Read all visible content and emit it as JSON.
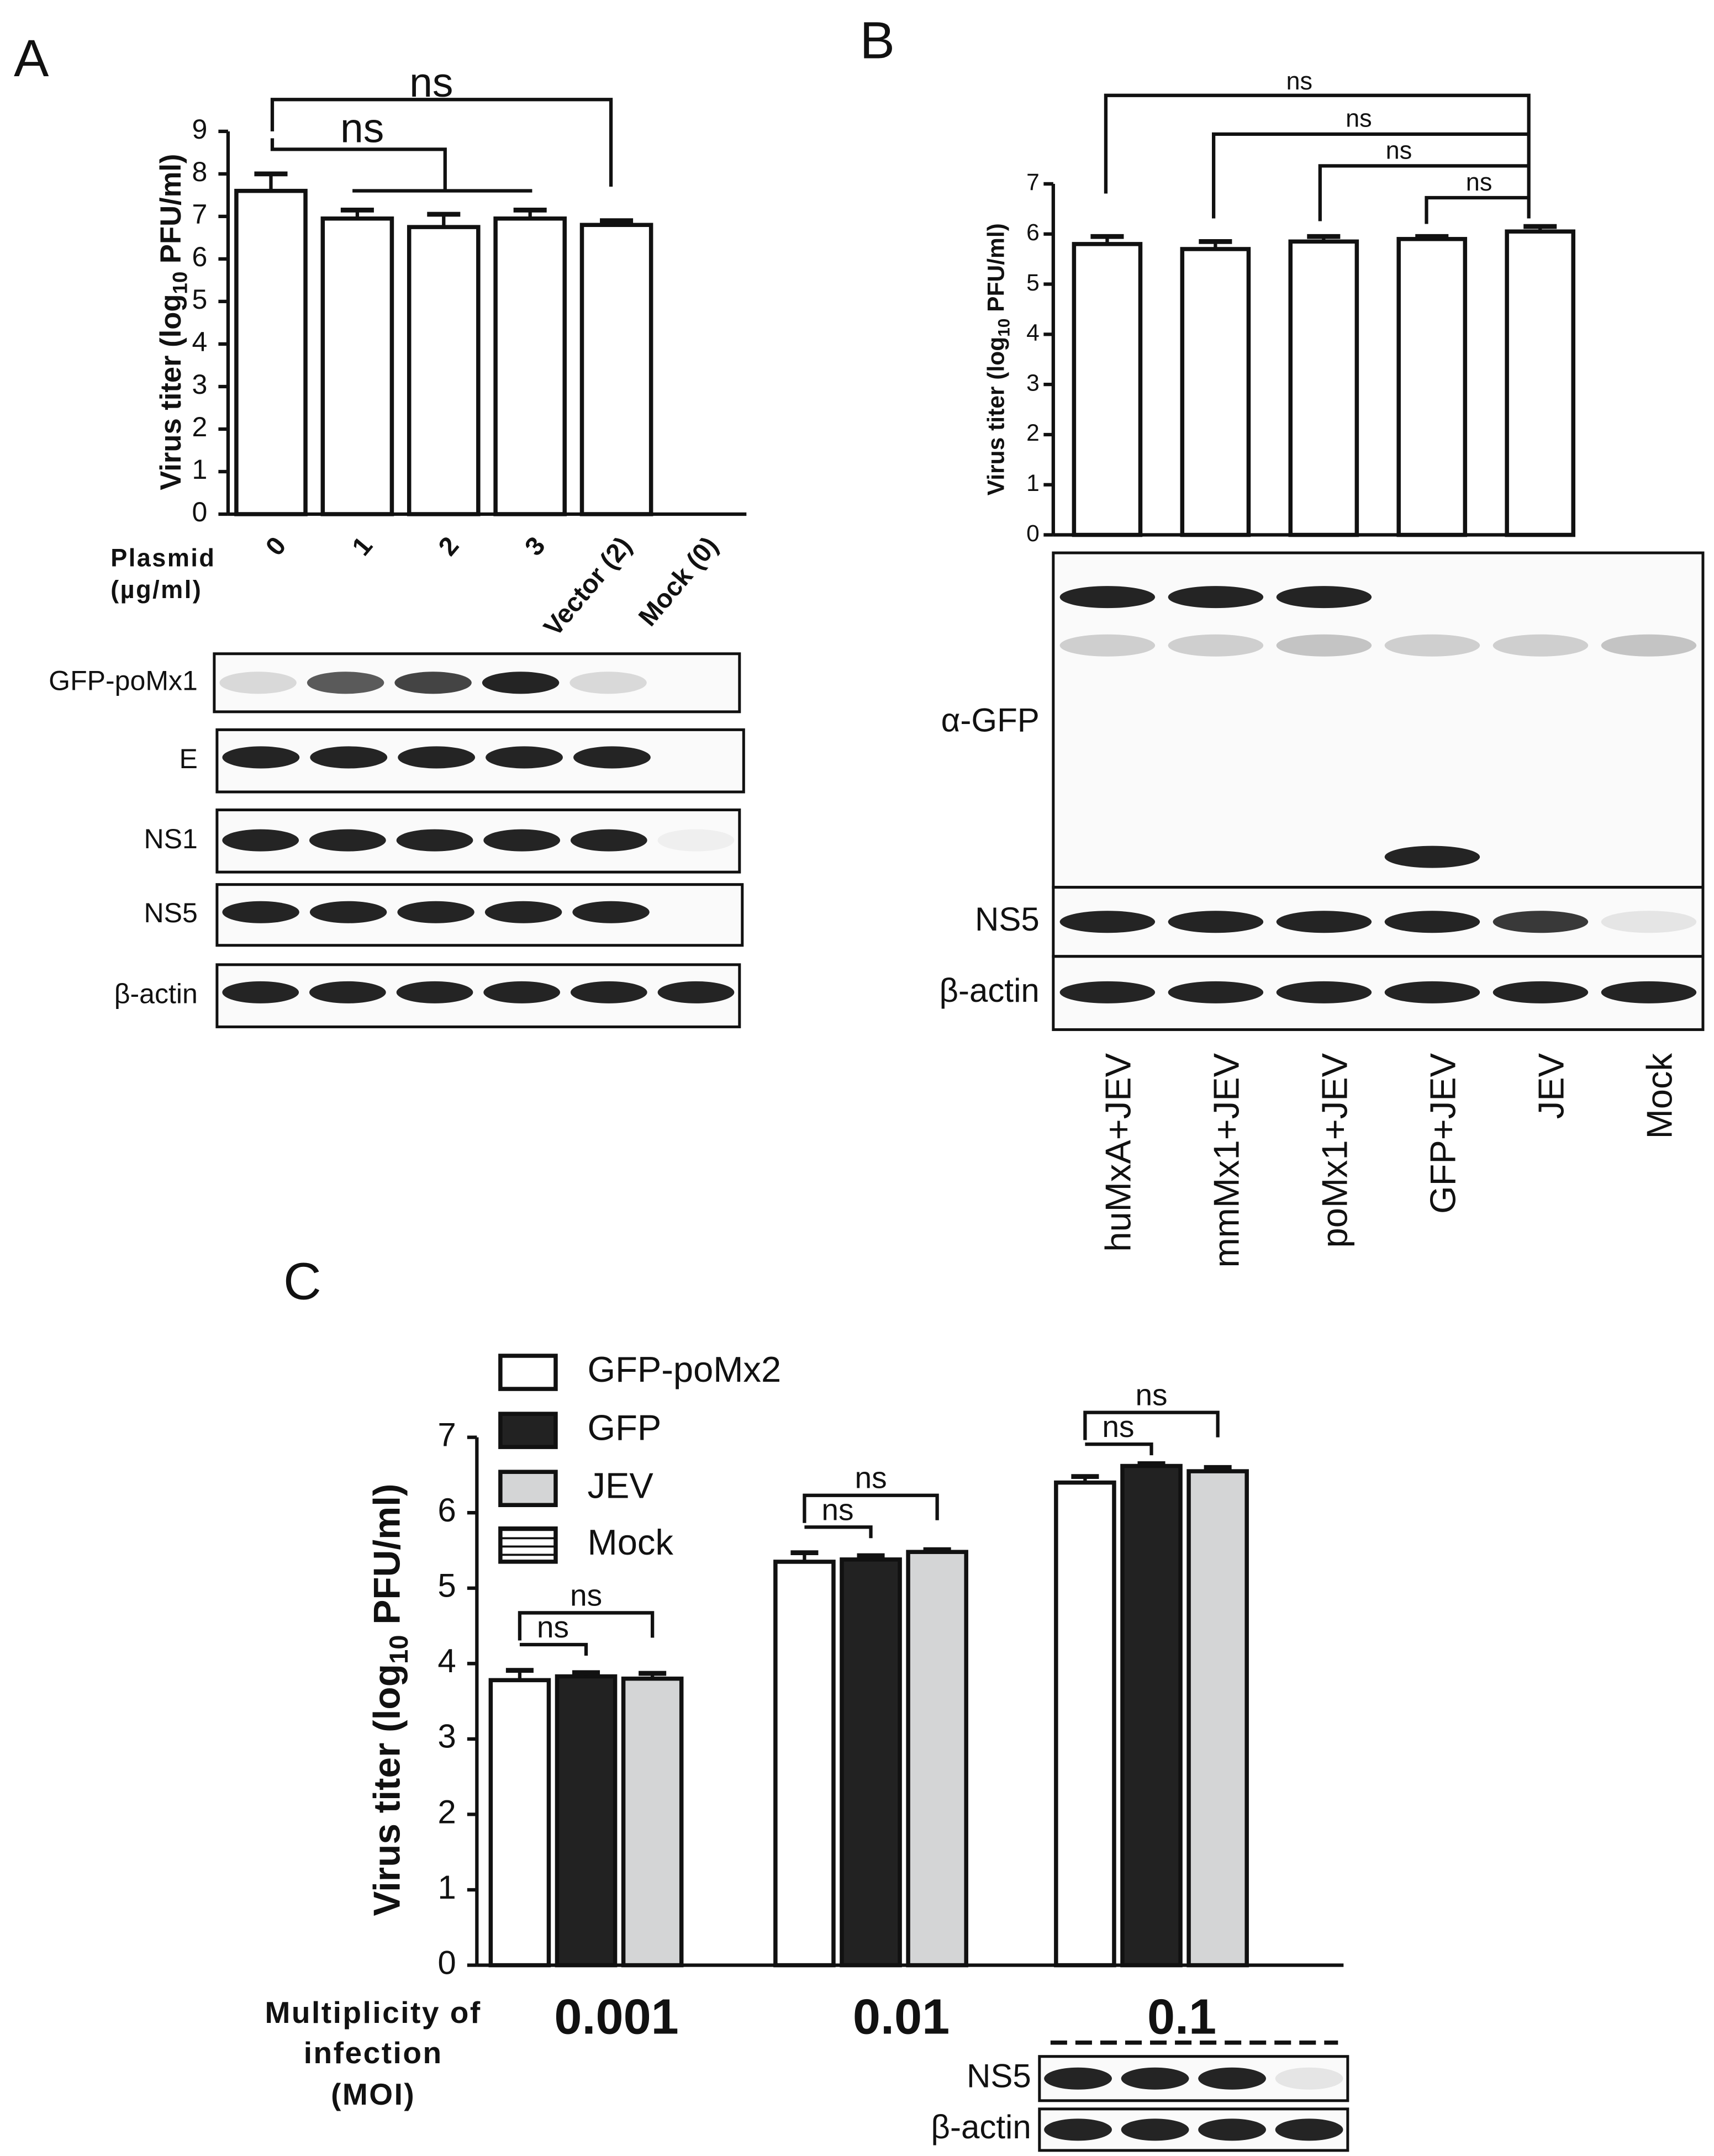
{
  "chart_data": [
    {
      "type": "bar",
      "panel": "A",
      "ylabel": {
        "main": "Virus titer (log",
        "sub": "10",
        "unit": " PFU/ml)"
      },
      "xlabel": [
        "Plasmid",
        "(µg/ml)"
      ],
      "categories": [
        "0",
        "1",
        "2",
        "3",
        "Vector (2)",
        "Mock (0)"
      ],
      "values": [
        7.6,
        6.95,
        6.75,
        6.95,
        6.8,
        null
      ],
      "errors": [
        0.4,
        0.2,
        0.3,
        0.2,
        0.1,
        null
      ],
      "color": "#ffffff",
      "ylim": [
        0,
        9
      ],
      "yticks": [
        0,
        1,
        2,
        3,
        4,
        5,
        6,
        7,
        8,
        9
      ],
      "annotations": [
        "ns",
        "ns"
      ],
      "blots": [
        "GFP-poMx1",
        "E",
        "NS1",
        "NS5",
        "β-actin"
      ]
    },
    {
      "type": "bar",
      "panel": "B",
      "ylabel": {
        "main": "Virus titer (log",
        "sub": "10",
        "unit": " PFU/ml)"
      },
      "categories": [
        "huMxA+JEV",
        "mmMx1+JEV",
        "poMx1+JEV",
        "GFP+JEV",
        "JEV",
        "Mock"
      ],
      "values": [
        5.8,
        5.7,
        5.85,
        5.9,
        6.05,
        null
      ],
      "errors": [
        0.15,
        0.15,
        0.1,
        0.05,
        0.1,
        null
      ],
      "color": "#ffffff",
      "ylim": [
        0,
        7
      ],
      "yticks": [
        0,
        1,
        2,
        3,
        4,
        5,
        6,
        7
      ],
      "annotations": [
        "ns",
        "ns",
        "ns",
        "ns"
      ],
      "blots": [
        "α-GFP",
        "NS5",
        "β-actin"
      ]
    },
    {
      "type": "bar",
      "panel": "C",
      "ylabel": {
        "main": "Virus titer (log",
        "sub": "10",
        "unit": " PFU/ml)"
      },
      "xlabel": [
        "Multiplicity of",
        "infection",
        "(MOI)"
      ],
      "categories": [
        "0.001",
        "0.01",
        "0.1"
      ],
      "series": [
        {
          "name": "GFP-poMx2",
          "color": "#ffffff",
          "values": [
            3.78,
            5.35,
            6.4
          ],
          "errors": [
            0.13,
            0.12,
            0.08
          ]
        },
        {
          "name": "GFP",
          "color": "#222222",
          "values": [
            3.83,
            5.38,
            6.62
          ],
          "errors": [
            0.05,
            0.05,
            0.03
          ]
        },
        {
          "name": "JEV",
          "color": "#d4d5d6",
          "values": [
            3.8,
            5.48,
            6.55
          ],
          "errors": [
            0.07,
            0.03,
            0.05
          ]
        },
        {
          "name": "Mock",
          "color": "#ffffff",
          "hatch": "horizontal",
          "values": [
            null,
            null,
            null
          ],
          "errors": [
            null,
            null,
            null
          ]
        }
      ],
      "ylim": [
        0,
        7
      ],
      "yticks": [
        0,
        1,
        2,
        3,
        4,
        5,
        6,
        7
      ],
      "annotations": [
        "ns",
        "ns",
        "ns",
        "ns",
        "ns",
        "ns"
      ],
      "blots": [
        "NS5",
        "β-actin"
      ]
    }
  ]
}
